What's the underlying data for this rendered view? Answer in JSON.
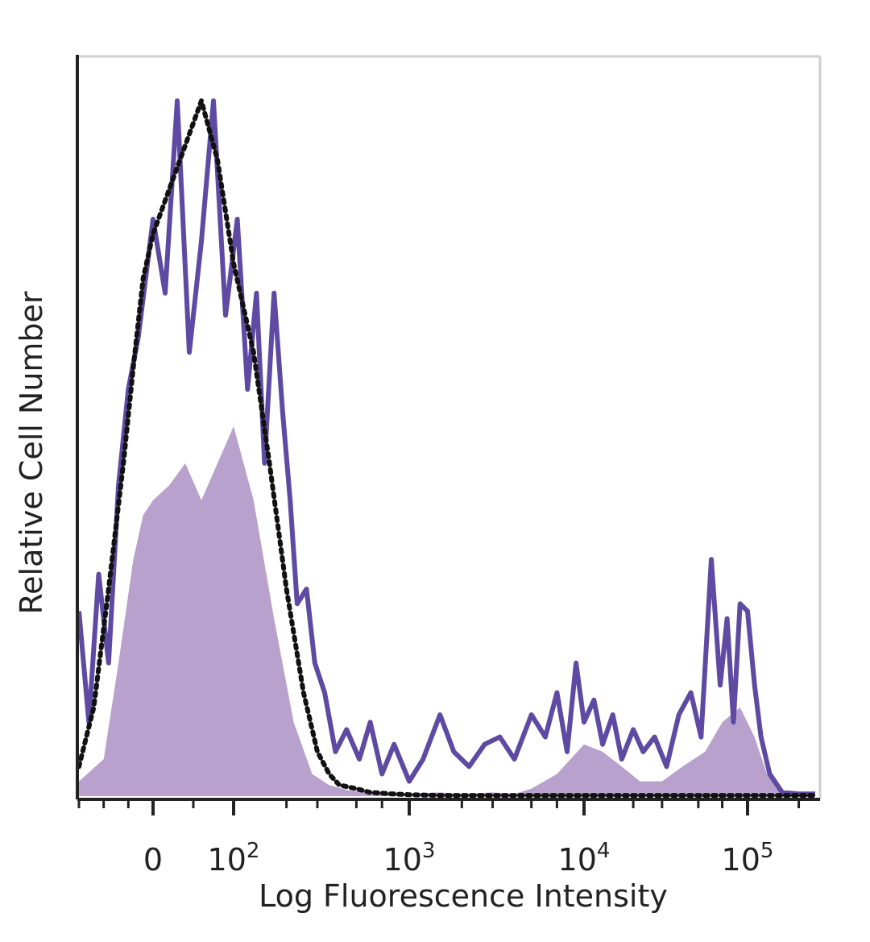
{
  "chart_data": {
    "type": "area",
    "xlabel": "Log Fluorescence Intensity",
    "ylabel": "Relative Cell Number",
    "x_scale": "biexponential",
    "xlim": [
      -150,
      250000
    ],
    "ylim": [
      0,
      100
    ],
    "grid": false,
    "x_ticks": [
      {
        "value": 0,
        "base": "0",
        "exp": ""
      },
      {
        "value": 100,
        "base": "10",
        "exp": "2"
      },
      {
        "value": 1000,
        "base": "10",
        "exp": "3"
      },
      {
        "value": 10000,
        "base": "10",
        "exp": "4"
      },
      {
        "value": 100000,
        "base": "10",
        "exp": "5"
      }
    ],
    "series": [
      {
        "style": "filled",
        "color": "#b9a1cd",
        "x": [
          -150,
          -100,
          -70,
          -40,
          -20,
          0,
          20,
          40,
          60,
          80,
          100,
          130,
          170,
          220,
          280,
          350,
          450,
          600,
          800,
          1000,
          1500,
          2000,
          3000,
          4000,
          5000,
          7000,
          10000,
          13000,
          17000,
          22000,
          30000,
          40000,
          55000,
          70000,
          90000,
          110000,
          130000,
          160000,
          200000,
          250000
        ],
        "y": [
          2,
          5,
          18,
          32,
          38,
          40,
          42,
          45,
          40,
          45,
          50,
          40,
          24,
          10,
          3,
          1.5,
          0.8,
          0.5,
          0.3,
          0.3,
          0.5,
          0.3,
          0.5,
          0.3,
          1,
          3,
          7,
          6,
          4,
          2,
          2,
          4,
          6,
          10,
          12,
          8,
          3,
          0.5,
          0.2,
          0.2
        ]
      },
      {
        "style": "solid-line",
        "color": "#5e4aa3",
        "x": [
          -150,
          -130,
          -110,
          -90,
          -70,
          -50,
          -30,
          -15,
          0,
          15,
          30,
          45,
          60,
          75,
          90,
          105,
          120,
          135,
          150,
          170,
          190,
          210,
          230,
          260,
          290,
          330,
          380,
          440,
          520,
          600,
          700,
          820,
          1000,
          1200,
          1500,
          1800,
          2200,
          2700,
          3300,
          4000,
          5000,
          6000,
          7000,
          8000,
          9000,
          10000,
          11500,
          13000,
          15000,
          17000,
          20000,
          23000,
          27000,
          32000,
          38000,
          45000,
          52000,
          60000,
          68000,
          75000,
          82000,
          90000,
          100000,
          110000,
          120000,
          135000,
          160000,
          200000,
          250000
        ],
        "y": [
          25,
          10,
          30,
          18,
          42,
          55,
          62,
          70,
          78,
          68,
          94,
          60,
          75,
          94,
          65,
          78,
          55,
          68,
          45,
          68,
          52,
          40,
          26,
          28,
          18,
          14,
          6,
          9,
          5,
          10,
          3,
          7,
          2,
          5,
          11,
          6,
          4,
          7,
          8,
          5,
          11,
          8,
          14,
          6,
          18,
          10,
          13,
          7,
          11,
          5,
          9,
          6,
          8,
          4,
          11,
          14,
          8,
          32,
          15,
          24,
          10,
          26,
          25,
          15,
          8,
          3,
          0.5,
          0.3,
          0.3
        ]
      },
      {
        "style": "dotted-line",
        "color": "#111111",
        "x": [
          -150,
          -120,
          -90,
          -60,
          -40,
          -20,
          0,
          20,
          40,
          60,
          80,
          100,
          130,
          160,
          200,
          250,
          300,
          350,
          400,
          500,
          600,
          800,
          1000,
          1500,
          2000,
          5000,
          10000,
          20000,
          50000,
          100000,
          250000
        ],
        "y": [
          4,
          12,
          28,
          45,
          58,
          70,
          76,
          82,
          88,
          94,
          86,
          72,
          60,
          45,
          28,
          14,
          6,
          3,
          1.5,
          1,
          0.5,
          0.3,
          0.2,
          0.1,
          0.1,
          0.1,
          0.1,
          0.1,
          0.1,
          0.1,
          0.1
        ]
      }
    ]
  }
}
